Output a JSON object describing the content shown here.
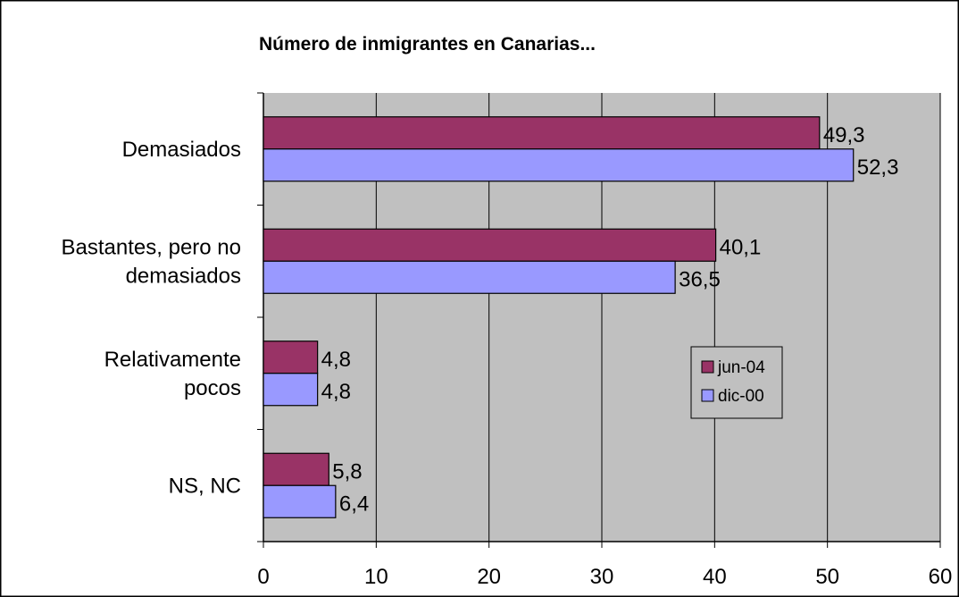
{
  "chart_data": {
    "type": "bar",
    "orientation": "horizontal",
    "title": "Número de inmigrantes en Canarias...",
    "xlabel": "",
    "ylabel": "",
    "categories": [
      [
        "Demasiados"
      ],
      [
        "Bastantes, pero no",
        "demasiados"
      ],
      [
        "Relativamente",
        "pocos"
      ],
      [
        "NS, NC"
      ]
    ],
    "series": [
      {
        "name": "jun-04",
        "color": "#993366",
        "values": [
          49.3,
          40.1,
          4.8,
          5.8
        ],
        "labels": [
          "49,3",
          "40,1",
          "4,8",
          "5,8"
        ]
      },
      {
        "name": "dic-00",
        "color": "#9999ff",
        "values": [
          52.3,
          36.5,
          4.8,
          6.4
        ],
        "labels": [
          "52,3",
          "36,5",
          "4,8",
          "6,4"
        ]
      }
    ],
    "xlim": [
      0,
      60
    ],
    "xticks": [
      0,
      10,
      20,
      30,
      40,
      50,
      60
    ],
    "grid": true,
    "plot_background": "#c0c0c0",
    "legend_position": "inside-right"
  }
}
